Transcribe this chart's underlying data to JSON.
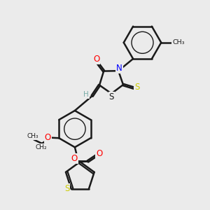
{
  "background_color": "#ebebeb",
  "bond_color": "#1a1a1a",
  "atom_colors": {
    "O": "#ff0000",
    "N": "#0000ff",
    "S_yellow": "#cccc00",
    "S_black": "#1a1a1a",
    "H": "#7aada8",
    "C": "#1a1a1a"
  },
  "figsize": [
    3.0,
    3.0
  ],
  "dpi": 100,
  "xlim": [
    0,
    10
  ],
  "ylim": [
    0,
    10
  ]
}
